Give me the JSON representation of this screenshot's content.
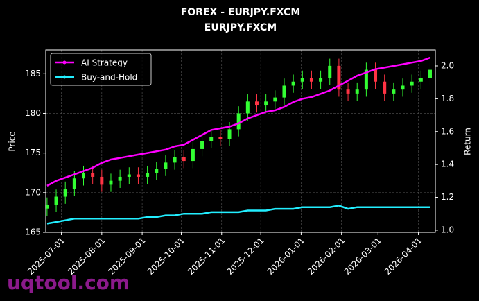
{
  "chart_data": {
    "type": "candlestick",
    "title": "FOREX - EURJPY.FXCM",
    "subtitle": "EURJPY.FXCM",
    "ylabel": "Price",
    "y2label": "Return",
    "watermark": "uqtool.com",
    "up_color": "#33ff33",
    "down_color": "#ff3344",
    "grid": true,
    "legend": "upper left",
    "x": [
      "2025-06-20",
      "2025-06-27",
      "2025-07-04",
      "2025-07-11",
      "2025-07-18",
      "2025-07-25",
      "2025-08-01",
      "2025-08-08",
      "2025-08-15",
      "2025-08-22",
      "2025-08-29",
      "2025-09-05",
      "2025-09-12",
      "2025-09-19",
      "2025-09-26",
      "2025-10-03",
      "2025-10-10",
      "2025-10-17",
      "2025-10-24",
      "2025-10-31",
      "2025-11-07",
      "2025-11-14",
      "2025-11-21",
      "2025-11-28",
      "2025-12-05",
      "2025-12-12",
      "2025-12-19",
      "2025-12-26",
      "2026-01-02",
      "2026-01-09",
      "2026-01-16",
      "2026-01-23",
      "2026-01-30",
      "2026-02-06",
      "2026-02-13",
      "2026-02-20",
      "2026-02-27",
      "2026-03-06",
      "2026-03-13",
      "2026-03-20",
      "2026-03-27",
      "2026-04-03",
      "2026-04-10"
    ],
    "open": [
      168.0,
      168.5,
      169.5,
      170.5,
      171.8,
      172.5,
      172.0,
      171.0,
      171.5,
      172.0,
      172.3,
      172.0,
      172.5,
      173.0,
      173.8,
      174.5,
      174.0,
      175.5,
      176.5,
      177.0,
      176.8,
      178.0,
      180.0,
      181.5,
      181.0,
      181.5,
      182.0,
      183.5,
      184.0,
      184.5,
      184.0,
      184.5,
      186.0,
      183.0,
      182.5,
      183.0,
      185.5,
      184.0,
      182.5,
      183.0,
      183.5,
      184.0,
      184.5
    ],
    "high": [
      169.4,
      170.4,
      171.4,
      172.7,
      173.4,
      173.4,
      172.9,
      172.4,
      172.9,
      173.2,
      173.2,
      173.4,
      173.9,
      174.7,
      175.4,
      175.4,
      176.4,
      177.4,
      177.9,
      177.9,
      178.9,
      180.9,
      182.4,
      182.4,
      182.4,
      182.9,
      184.4,
      184.9,
      185.4,
      185.4,
      185.4,
      186.9,
      186.9,
      183.9,
      183.9,
      186.4,
      186.4,
      184.9,
      183.9,
      184.4,
      184.9,
      185.4,
      186.4
    ],
    "low": [
      167.1,
      167.6,
      168.6,
      169.6,
      170.9,
      171.1,
      170.1,
      170.1,
      170.6,
      171.1,
      171.1,
      171.1,
      171.6,
      172.1,
      172.9,
      173.1,
      173.1,
      174.6,
      175.6,
      175.9,
      175.9,
      177.1,
      179.1,
      180.1,
      180.1,
      180.6,
      181.1,
      182.6,
      183.1,
      183.1,
      183.1,
      183.6,
      182.1,
      181.6,
      181.6,
      182.1,
      183.1,
      181.6,
      181.6,
      182.1,
      182.6,
      183.1,
      183.6
    ],
    "close": [
      168.5,
      169.5,
      170.5,
      171.8,
      172.5,
      172.0,
      171.0,
      171.5,
      172.0,
      172.3,
      172.0,
      172.5,
      173.0,
      173.8,
      174.5,
      174.0,
      175.5,
      176.5,
      177.0,
      176.8,
      178.0,
      180.0,
      181.5,
      181.0,
      181.5,
      182.0,
      183.5,
      184.0,
      184.5,
      184.0,
      184.5,
      186.0,
      183.0,
      182.5,
      183.0,
      185.5,
      184.0,
      182.5,
      183.0,
      183.5,
      184.0,
      184.5,
      185.5
    ],
    "series": [
      {
        "name": "AI Strategy",
        "color": "#ff00ff",
        "axis": "y2",
        "values": [
          1.27,
          1.3,
          1.32,
          1.34,
          1.36,
          1.38,
          1.41,
          1.43,
          1.44,
          1.45,
          1.46,
          1.47,
          1.48,
          1.49,
          1.51,
          1.52,
          1.55,
          1.58,
          1.61,
          1.62,
          1.63,
          1.65,
          1.68,
          1.7,
          1.72,
          1.73,
          1.75,
          1.78,
          1.8,
          1.81,
          1.83,
          1.85,
          1.88,
          1.91,
          1.94,
          1.96,
          1.98,
          1.99,
          2.0,
          2.01,
          2.02,
          2.03,
          2.05
        ]
      },
      {
        "name": "Buy-and-Hold",
        "color": "#22eeff",
        "axis": "y2",
        "values": [
          1.04,
          1.05,
          1.06,
          1.07,
          1.07,
          1.07,
          1.07,
          1.07,
          1.07,
          1.07,
          1.07,
          1.08,
          1.08,
          1.09,
          1.09,
          1.1,
          1.1,
          1.1,
          1.11,
          1.11,
          1.11,
          1.11,
          1.12,
          1.12,
          1.12,
          1.13,
          1.13,
          1.13,
          1.14,
          1.14,
          1.14,
          1.14,
          1.15,
          1.13,
          1.14,
          1.14,
          1.14,
          1.14,
          1.14,
          1.14,
          1.14,
          1.14,
          1.14
        ]
      }
    ],
    "xlim": [
      "2025-06-19",
      "2026-04-14"
    ],
    "xticks": [
      "2025-07-01",
      "2025-08-01",
      "2025-09-01",
      "2025-10-01",
      "2025-11-01",
      "2025-12-01",
      "2026-01-01",
      "2026-02-01",
      "2026-03-01",
      "2026-04-01"
    ],
    "ylim": [
      165,
      188
    ],
    "yticks": [
      165,
      170,
      175,
      180,
      185
    ],
    "y2lim": [
      0.987,
      2.097
    ],
    "y2ticks": [
      {
        "value": 1.0,
        "label": "1.0"
      },
      1.2,
      1.4,
      1.6,
      1.8,
      {
        "value": 2.0,
        "label": "2.0"
      }
    ]
  }
}
